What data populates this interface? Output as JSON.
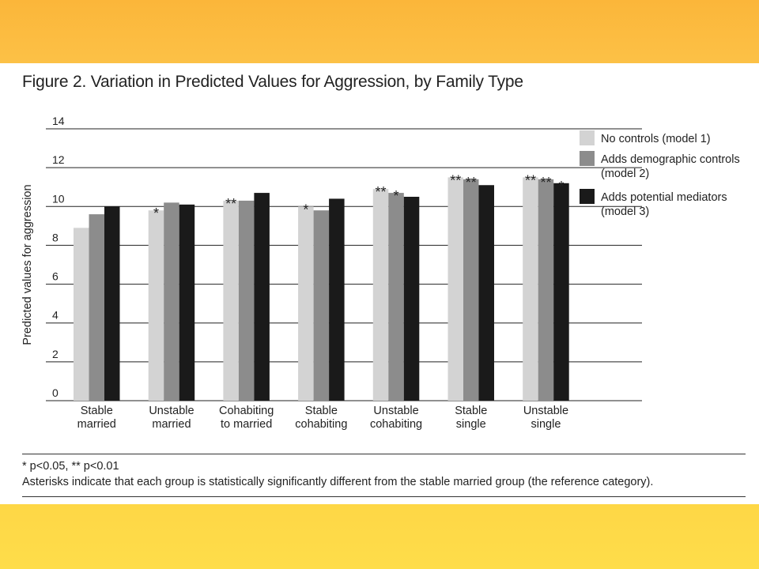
{
  "figure": {
    "title": "Figure 2. Variation in Predicted Values for Aggression, by Family Type",
    "footnote_sig": "* p<0.05, ** p<0.01",
    "footnote_text": "Asterisks indicate that each group is statistically significantly different from the stable married group (the reference category)."
  },
  "colors": {
    "band_top": "#fbb63a",
    "band_bottom": "#fed746",
    "model1": "#d3d3d3",
    "model2": "#8c8c8c",
    "model3": "#1a1a1a",
    "gridline": "#222222",
    "text": "#222222"
  },
  "chart_data": {
    "type": "bar",
    "ylabel": "Predicted values for aggression",
    "xlabel": "",
    "ylim": [
      0,
      14
    ],
    "yticks": [
      0,
      2,
      4,
      6,
      8,
      10,
      12,
      14
    ],
    "grid": true,
    "legend_position": "top-right",
    "categories": [
      [
        "Stable",
        "married"
      ],
      [
        "Unstable",
        "married"
      ],
      [
        "Cohabiting",
        "to married"
      ],
      [
        "Stable",
        "cohabiting"
      ],
      [
        "Unstable",
        "cohabiting"
      ],
      [
        "Stable",
        "single"
      ],
      [
        "Unstable",
        "single"
      ]
    ],
    "series": [
      {
        "name": [
          "No controls (model 1)"
        ],
        "color": "#d3d3d3",
        "values": [
          8.9,
          9.8,
          10.3,
          10.0,
          10.9,
          11.5,
          11.5
        ],
        "sig": [
          "",
          "*",
          "**",
          "*",
          "**",
          "**",
          "**"
        ]
      },
      {
        "name": [
          "Adds demographic controls",
          "(model 2)"
        ],
        "color": "#8c8c8c",
        "values": [
          9.6,
          10.2,
          10.3,
          9.8,
          10.7,
          11.4,
          11.4
        ],
        "sig": [
          "",
          "",
          "",
          "",
          "*",
          "**",
          "**"
        ]
      },
      {
        "name": [
          "Adds potential mediators",
          "(model 3)"
        ],
        "color": "#1a1a1a",
        "values": [
          10.0,
          10.1,
          10.7,
          10.4,
          10.5,
          11.1,
          11.2
        ],
        "sig": [
          "",
          "",
          "",
          "",
          "",
          "",
          "*"
        ]
      }
    ]
  }
}
